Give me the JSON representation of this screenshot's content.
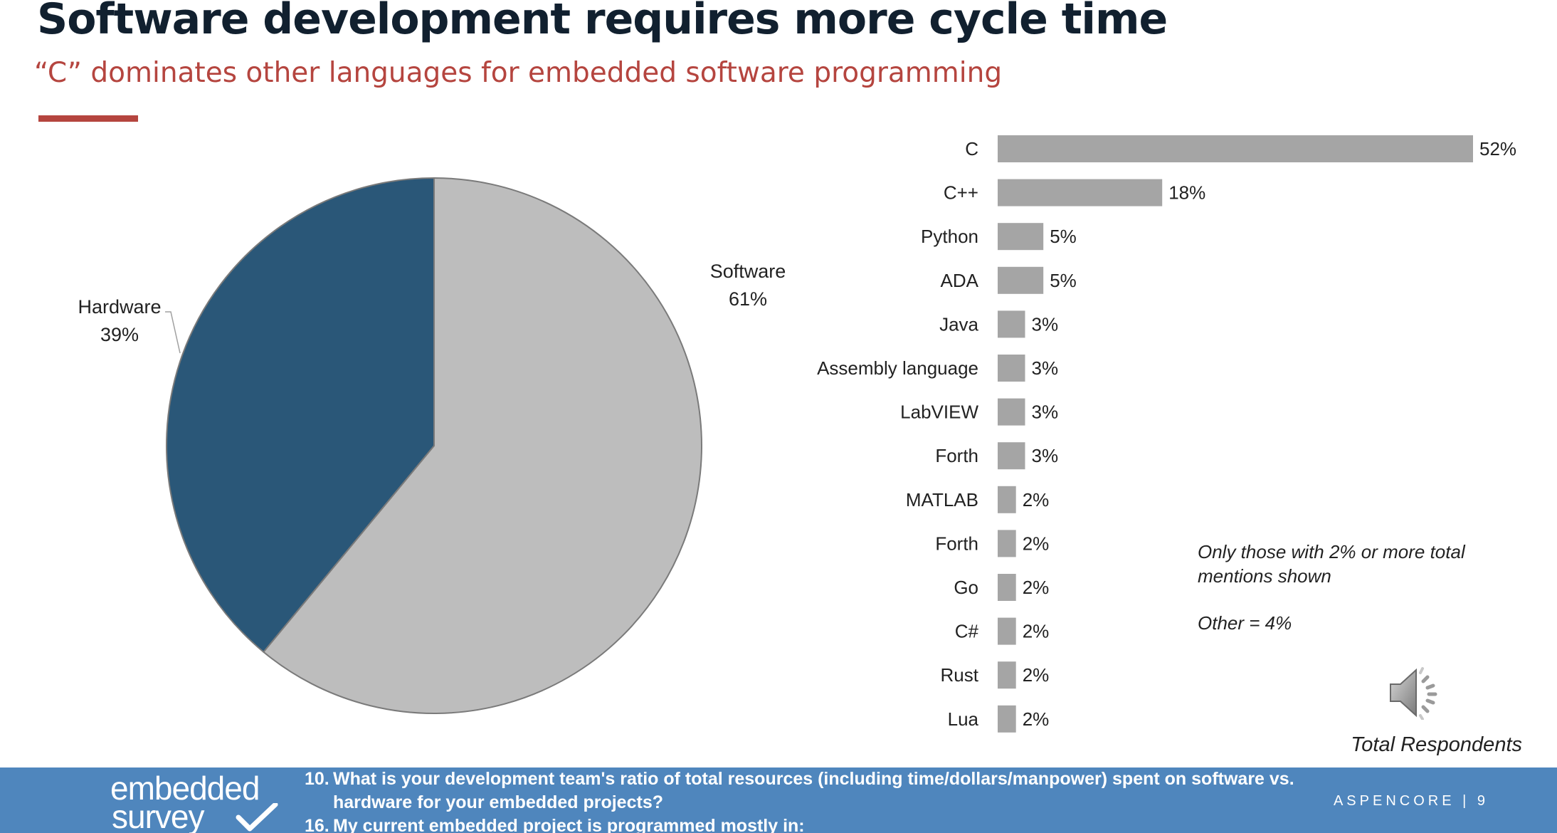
{
  "header": {
    "title": "Software development requires more cycle time",
    "subtitle": "“C” dominates other languages for embedded software programming"
  },
  "chart_data": [
    {
      "type": "pie",
      "slices": [
        {
          "label": "Software",
          "value": 61,
          "value_label": "61%",
          "color": "#bdbdbd"
        },
        {
          "label": "Hardware",
          "value": 39,
          "value_label": "39%",
          "color": "#2a5778"
        }
      ]
    },
    {
      "type": "bar",
      "orientation": "horizontal",
      "categories": [
        "C",
        "C++",
        "Python",
        "ADA",
        "Java",
        "Assembly language",
        "LabVIEW",
        "Forth",
        "MATLAB",
        "Forth",
        "Go",
        "C#",
        "Rust",
        "Lua"
      ],
      "values": [
        52,
        18,
        5,
        5,
        3,
        3,
        3,
        3,
        2,
        2,
        2,
        2,
        2,
        2
      ],
      "value_labels": [
        "52%",
        "18%",
        "5%",
        "5%",
        "3%",
        "3%",
        "3%",
        "3%",
        "2%",
        "2%",
        "2%",
        "2%",
        "2%",
        "2%"
      ],
      "bar_color": "#a5a5a5"
    }
  ],
  "note": {
    "line1": "Only those with 2% or more total",
    "line2": "mentions shown",
    "other": "Other = 4%"
  },
  "total_label": "Total Respondents",
  "footer": {
    "logo_top": "embedded",
    "logo_bottom": "survey",
    "questions": [
      {
        "num": "10.",
        "text": "What is your development team's ratio of total resources (including time/dollars/manpower) spent on software vs. hardware for your embedded projects?"
      },
      {
        "num": "16.",
        "text": "My current embedded project is programmed mostly in:"
      }
    ],
    "brand": "ASPENCORE",
    "page": "9"
  },
  "icons": [
    "speaker-icon",
    "checkmark-icon"
  ]
}
